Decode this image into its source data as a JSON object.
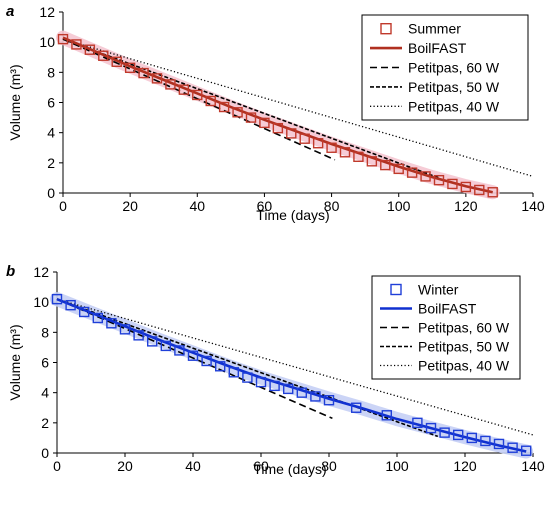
{
  "chart_data": [
    {
      "type": "line",
      "panel_label": "a",
      "xlabel": "Time (days)",
      "ylabel": "Volume (m³)",
      "xlim": [
        0,
        140
      ],
      "ylim": [
        0,
        12
      ],
      "xticks": [
        0,
        20,
        40,
        60,
        80,
        100,
        120,
        140
      ],
      "yticks": [
        0,
        2,
        4,
        6,
        8,
        10,
        12
      ],
      "grid": false,
      "legend_position": "top-right",
      "colors": {
        "observed": "#c0392b",
        "model": "#b03020",
        "band": "#f5c6d2",
        "reference": "#000000"
      },
      "series": [
        {
          "name": "Summer",
          "kind": "markers",
          "marker": "open-square",
          "x": [
            0,
            4,
            8,
            12,
            16,
            20,
            24,
            28,
            32,
            36,
            40,
            44,
            48,
            52,
            56,
            60,
            64,
            68,
            72,
            76,
            80,
            84,
            88,
            92,
            96,
            100,
            104,
            108,
            112,
            116,
            120,
            124,
            128
          ],
          "y": [
            10.2,
            9.85,
            9.5,
            9.1,
            8.7,
            8.3,
            7.95,
            7.6,
            7.2,
            6.85,
            6.5,
            6.1,
            5.7,
            5.35,
            5.0,
            4.65,
            4.3,
            3.95,
            3.6,
            3.3,
            3.0,
            2.7,
            2.4,
            2.1,
            1.85,
            1.6,
            1.35,
            1.1,
            0.85,
            0.6,
            0.4,
            0.2,
            0.05
          ]
        },
        {
          "name": "BoilFAST",
          "kind": "line",
          "style": "solid",
          "x": [
            0,
            10,
            20,
            30,
            40,
            50,
            60,
            70,
            80,
            90,
            100,
            110,
            120,
            128
          ],
          "y": [
            10.3,
            9.35,
            8.4,
            7.5,
            6.6,
            5.7,
            4.85,
            4.05,
            3.25,
            2.5,
            1.75,
            1.05,
            0.45,
            0.05
          ]
        },
        {
          "name": "Petitpas, 60 W",
          "kind": "line",
          "style": "dashed",
          "x": [
            0,
            81
          ],
          "y": [
            10.2,
            2.2
          ]
        },
        {
          "name": "Petitpas, 50 W",
          "kind": "line",
          "style": "dense-dashed",
          "x": [
            0,
            112
          ],
          "y": [
            10.2,
            1.0
          ]
        },
        {
          "name": "Petitpas, 40 W",
          "kind": "line",
          "style": "dotted",
          "x": [
            0,
            140
          ],
          "y": [
            10.2,
            1.1
          ]
        }
      ]
    },
    {
      "type": "line",
      "panel_label": "b",
      "xlabel": "Time (days)",
      "ylabel": "Volume (m³)",
      "xlim": [
        0,
        140
      ],
      "ylim": [
        0,
        12
      ],
      "xticks": [
        0,
        20,
        40,
        60,
        80,
        100,
        120,
        140
      ],
      "yticks": [
        0,
        2,
        4,
        6,
        8,
        10,
        12
      ],
      "grid": false,
      "legend_position": "top-right",
      "colors": {
        "observed": "#1f3fd8",
        "model": "#1030d0",
        "band": "#c5cff5",
        "reference": "#000000"
      },
      "series": [
        {
          "name": "Winter",
          "kind": "markers",
          "marker": "open-square",
          "x": [
            0,
            4,
            8,
            12,
            16,
            20,
            24,
            28,
            32,
            36,
            40,
            44,
            48,
            52,
            56,
            60,
            64,
            68,
            72,
            76,
            80,
            88,
            97,
            106,
            110,
            114,
            118,
            122,
            126,
            130,
            134,
            138
          ],
          "y": [
            10.2,
            9.8,
            9.35,
            8.95,
            8.6,
            8.2,
            7.8,
            7.4,
            7.1,
            6.8,
            6.45,
            6.1,
            5.75,
            5.35,
            5.0,
            4.7,
            4.45,
            4.25,
            4.0,
            3.75,
            3.5,
            3.0,
            2.5,
            2.0,
            1.65,
            1.35,
            1.2,
            1.0,
            0.8,
            0.6,
            0.35,
            0.15
          ]
        },
        {
          "name": "BoilFAST",
          "kind": "line",
          "style": "solid",
          "x": [
            0,
            10,
            20,
            30,
            40,
            50,
            60,
            70,
            80,
            90,
            100,
            110,
            120,
            130,
            138
          ],
          "y": [
            10.2,
            9.3,
            8.4,
            7.5,
            6.65,
            5.8,
            5.0,
            4.3,
            3.6,
            2.95,
            2.25,
            1.65,
            1.05,
            0.5,
            0.1
          ]
        },
        {
          "name": "Petitpas, 60 W",
          "kind": "line",
          "style": "dashed",
          "x": [
            0,
            81
          ],
          "y": [
            10.2,
            2.3
          ]
        },
        {
          "name": "Petitpas, 50 W",
          "kind": "line",
          "style": "dense-dashed",
          "x": [
            0,
            112
          ],
          "y": [
            10.2,
            1.1
          ]
        },
        {
          "name": "Petitpas, 40 W",
          "kind": "line",
          "style": "dotted",
          "x": [
            0,
            140
          ],
          "y": [
            10.2,
            1.2
          ]
        }
      ]
    }
  ]
}
